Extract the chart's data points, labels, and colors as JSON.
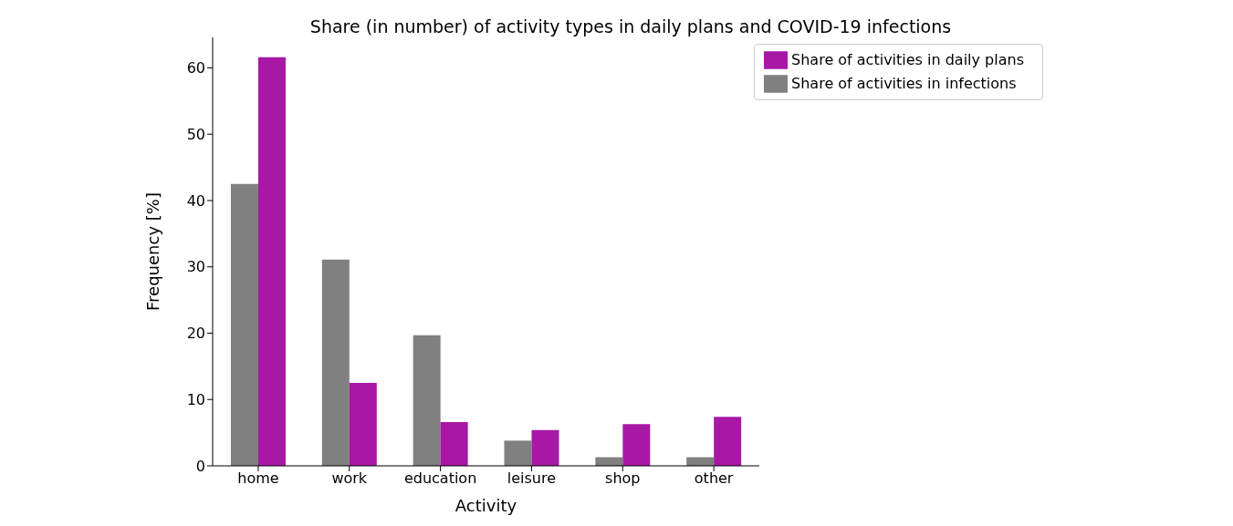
{
  "chart_data": {
    "type": "bar",
    "title": "Share (in number) of activity types in daily plans and COVID-19 infections",
    "xlabel": "Activity",
    "ylabel": "Frequency [%]",
    "categories": [
      "home",
      "work",
      "education",
      "leisure",
      "shop",
      "other"
    ],
    "series": [
      {
        "name": "Share of activities in infections",
        "color": "#808080",
        "values": [
          42.5,
          31.1,
          19.7,
          3.8,
          1.3,
          1.3
        ]
      },
      {
        "name": "Share of activities in daily plans",
        "color": "#a718a7",
        "values": [
          61.6,
          12.5,
          6.6,
          5.4,
          6.3,
          7.4
        ]
      }
    ],
    "ylim": [
      0,
      64.6
    ],
    "yticks": [
      0,
      10,
      20,
      30,
      40,
      50,
      60
    ],
    "grid": false,
    "legend": "top right"
  }
}
